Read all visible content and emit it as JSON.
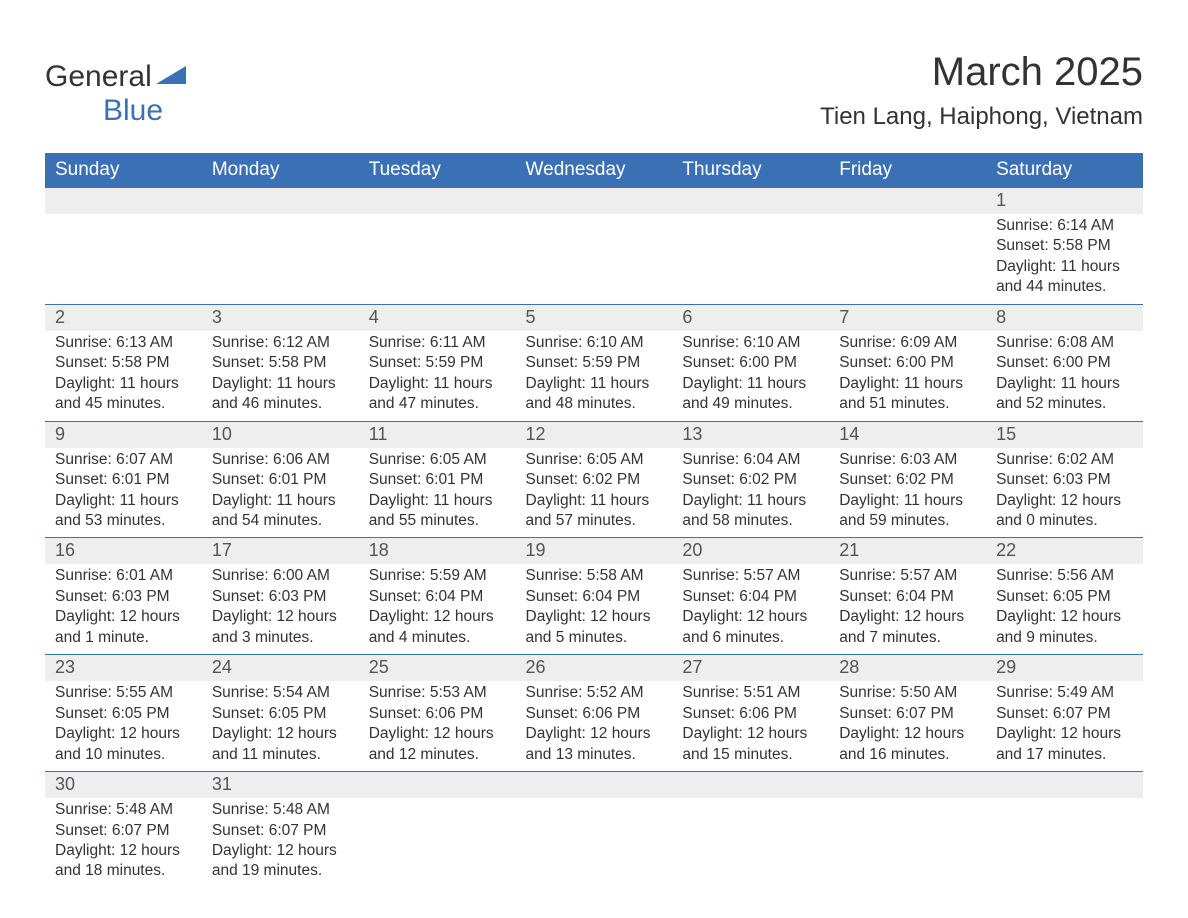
{
  "brand": {
    "general": "General",
    "blue": "Blue"
  },
  "title": "March 2025",
  "subtitle": "Tien Lang, Haiphong, Vietnam",
  "colors": {
    "header_bg": "#3a71b5",
    "header_fg": "#ffffff",
    "daynum_bg": "#eeeeee",
    "border": "#3a71b5",
    "text": "#333333",
    "background": "#ffffff"
  },
  "dayHeaders": [
    "Sunday",
    "Monday",
    "Tuesday",
    "Wednesday",
    "Thursday",
    "Friday",
    "Saturday"
  ],
  "startOffset": 6,
  "daysInMonth": 31,
  "days": {
    "1": {
      "sunrise": "6:14 AM",
      "sunset": "5:58 PM",
      "daylight": "11 hours and 44 minutes."
    },
    "2": {
      "sunrise": "6:13 AM",
      "sunset": "5:58 PM",
      "daylight": "11 hours and 45 minutes."
    },
    "3": {
      "sunrise": "6:12 AM",
      "sunset": "5:58 PM",
      "daylight": "11 hours and 46 minutes."
    },
    "4": {
      "sunrise": "6:11 AM",
      "sunset": "5:59 PM",
      "daylight": "11 hours and 47 minutes."
    },
    "5": {
      "sunrise": "6:10 AM",
      "sunset": "5:59 PM",
      "daylight": "11 hours and 48 minutes."
    },
    "6": {
      "sunrise": "6:10 AM",
      "sunset": "6:00 PM",
      "daylight": "11 hours and 49 minutes."
    },
    "7": {
      "sunrise": "6:09 AM",
      "sunset": "6:00 PM",
      "daylight": "11 hours and 51 minutes."
    },
    "8": {
      "sunrise": "6:08 AM",
      "sunset": "6:00 PM",
      "daylight": "11 hours and 52 minutes."
    },
    "9": {
      "sunrise": "6:07 AM",
      "sunset": "6:01 PM",
      "daylight": "11 hours and 53 minutes."
    },
    "10": {
      "sunrise": "6:06 AM",
      "sunset": "6:01 PM",
      "daylight": "11 hours and 54 minutes."
    },
    "11": {
      "sunrise": "6:05 AM",
      "sunset": "6:01 PM",
      "daylight": "11 hours and 55 minutes."
    },
    "12": {
      "sunrise": "6:05 AM",
      "sunset": "6:02 PM",
      "daylight": "11 hours and 57 minutes."
    },
    "13": {
      "sunrise": "6:04 AM",
      "sunset": "6:02 PM",
      "daylight": "11 hours and 58 minutes."
    },
    "14": {
      "sunrise": "6:03 AM",
      "sunset": "6:02 PM",
      "daylight": "11 hours and 59 minutes."
    },
    "15": {
      "sunrise": "6:02 AM",
      "sunset": "6:03 PM",
      "daylight": "12 hours and 0 minutes."
    },
    "16": {
      "sunrise": "6:01 AM",
      "sunset": "6:03 PM",
      "daylight": "12 hours and 1 minute."
    },
    "17": {
      "sunrise": "6:00 AM",
      "sunset": "6:03 PM",
      "daylight": "12 hours and 3 minutes."
    },
    "18": {
      "sunrise": "5:59 AM",
      "sunset": "6:04 PM",
      "daylight": "12 hours and 4 minutes."
    },
    "19": {
      "sunrise": "5:58 AM",
      "sunset": "6:04 PM",
      "daylight": "12 hours and 5 minutes."
    },
    "20": {
      "sunrise": "5:57 AM",
      "sunset": "6:04 PM",
      "daylight": "12 hours and 6 minutes."
    },
    "21": {
      "sunrise": "5:57 AM",
      "sunset": "6:04 PM",
      "daylight": "12 hours and 7 minutes."
    },
    "22": {
      "sunrise": "5:56 AM",
      "sunset": "6:05 PM",
      "daylight": "12 hours and 9 minutes."
    },
    "23": {
      "sunrise": "5:55 AM",
      "sunset": "6:05 PM",
      "daylight": "12 hours and 10 minutes."
    },
    "24": {
      "sunrise": "5:54 AM",
      "sunset": "6:05 PM",
      "daylight": "12 hours and 11 minutes."
    },
    "25": {
      "sunrise": "5:53 AM",
      "sunset": "6:06 PM",
      "daylight": "12 hours and 12 minutes."
    },
    "26": {
      "sunrise": "5:52 AM",
      "sunset": "6:06 PM",
      "daylight": "12 hours and 13 minutes."
    },
    "27": {
      "sunrise": "5:51 AM",
      "sunset": "6:06 PM",
      "daylight": "12 hours and 15 minutes."
    },
    "28": {
      "sunrise": "5:50 AM",
      "sunset": "6:07 PM",
      "daylight": "12 hours and 16 minutes."
    },
    "29": {
      "sunrise": "5:49 AM",
      "sunset": "6:07 PM",
      "daylight": "12 hours and 17 minutes."
    },
    "30": {
      "sunrise": "5:48 AM",
      "sunset": "6:07 PM",
      "daylight": "12 hours and 18 minutes."
    },
    "31": {
      "sunrise": "5:48 AM",
      "sunset": "6:07 PM",
      "daylight": "12 hours and 19 minutes."
    }
  },
  "labels": {
    "sunrise": "Sunrise:",
    "sunset": "Sunset:",
    "daylight": "Daylight:"
  }
}
